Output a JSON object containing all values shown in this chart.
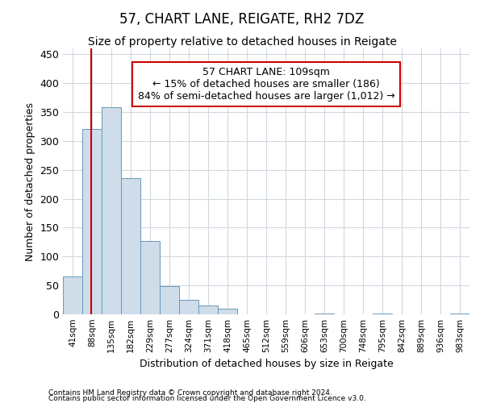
{
  "title": "57, CHART LANE, REIGATE, RH2 7DZ",
  "subtitle": "Size of property relative to detached houses in Reigate",
  "xlabel": "Distribution of detached houses by size in Reigate",
  "ylabel": "Number of detached properties",
  "bin_edges": [
    41,
    88,
    135,
    182,
    229,
    277,
    324,
    371,
    418,
    465,
    512,
    559,
    606,
    653,
    700,
    748,
    795,
    842,
    889,
    936,
    983,
    1030
  ],
  "counts": [
    65,
    320,
    358,
    235,
    127,
    49,
    25,
    15,
    10,
    0,
    0,
    0,
    0,
    1,
    0,
    0,
    1,
    0,
    0,
    0,
    2
  ],
  "bar_facecolor": "#cfdce9",
  "bar_edgecolor": "#6699bb",
  "vline_x": 109,
  "vline_color": "#cc0000",
  "annotation_text": "57 CHART LANE: 109sqm\n← 15% of detached houses are smaller (186)\n84% of semi-detached houses are larger (1,012) →",
  "annotation_box_color": "#ffffff",
  "annotation_border_color": "#cc0000",
  "ylim": [
    0,
    460
  ],
  "yticks": [
    0,
    50,
    100,
    150,
    200,
    250,
    300,
    350,
    400,
    450
  ],
  "tick_labels": [
    "41sqm",
    "88sqm",
    "135sqm",
    "182sqm",
    "229sqm",
    "277sqm",
    "324sqm",
    "371sqm",
    "418sqm",
    "465sqm",
    "512sqm",
    "559sqm",
    "606sqm",
    "653sqm",
    "700sqm",
    "748sqm",
    "795sqm",
    "842sqm",
    "889sqm",
    "936sqm",
    "983sqm"
  ],
  "footer1": "Contains HM Land Registry data © Crown copyright and database right 2024.",
  "footer2": "Contains public sector information licensed under the Open Government Licence v3.0.",
  "bg_color": "#ffffff",
  "grid_color": "#d0d8e0",
  "title_fontsize": 12,
  "subtitle_fontsize": 10,
  "tick_label_fontsize": 7.5,
  "axis_label_fontsize": 9,
  "annotation_fontsize": 9,
  "footer_fontsize": 6.5
}
